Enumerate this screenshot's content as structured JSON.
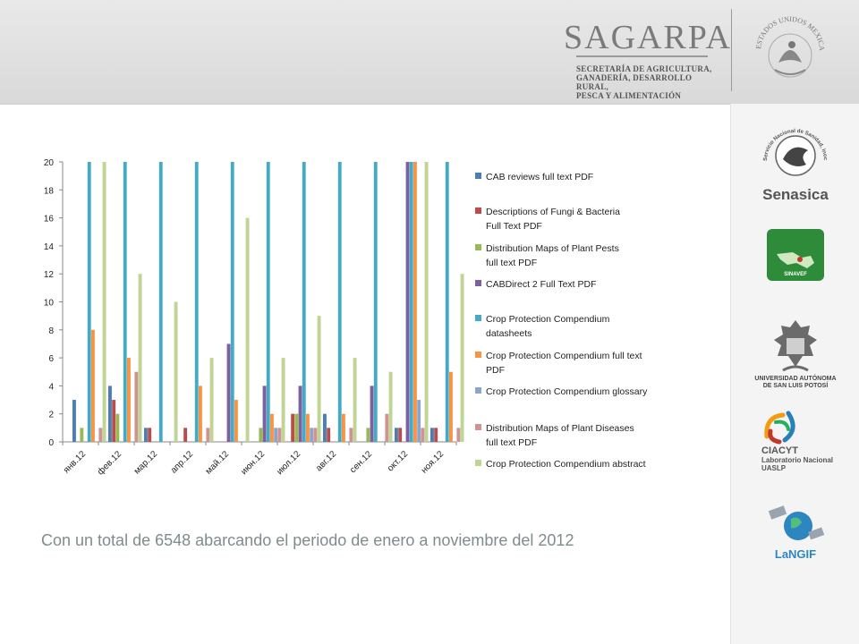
{
  "header": {
    "sagarpa_title": "SAGARPA",
    "sagarpa_sub1": "SECRETARÍA DE AGRICULTURA,",
    "sagarpa_sub2": "GANADERÍA, DESARROLLO RURAL,",
    "sagarpa_sub3": "PESCA Y ALIMENTACIÓN",
    "seal_text": "ESTADOS UNIDOS MEXICANOS"
  },
  "sidebar": {
    "senasica_ring": "Servicio Nacional de Sanidad, Inocuidad y Calidad Agroalimentaria",
    "senasica_label": "Senasica",
    "sinavef_label": "SINAVEF",
    "uaslp_label1": "UNIVERSIDAD AUTÓNOMA",
    "uaslp_label2": "DE SAN LUIS POTOSÍ",
    "ciacyt_label1": "CIACYT",
    "ciacyt_label2": "Laboratorio Nacional",
    "ciacyt_label3": "UASLP",
    "langif_label": "LaNGIF"
  },
  "caption": {
    "prefix": "Con un total de ",
    "total": "6548",
    "suffix": " abarcando el periodo de enero a noviembre del 2012"
  },
  "chart_data": {
    "type": "bar",
    "categories": [
      "янв.12",
      "фев.12",
      "мар.12",
      "апр.12",
      "май.12",
      "июн.12",
      "июл.12",
      "авг.12",
      "сен.12",
      "окт.12",
      "ноя.12"
    ],
    "ylim": [
      0,
      20
    ],
    "yticks": [
      0,
      2,
      4,
      6,
      8,
      10,
      12,
      14,
      16,
      18,
      20
    ],
    "grid": false,
    "legend_position": "right",
    "series": [
      {
        "name": "CAB reviews full text PDF",
        "color": "#4a7ebb",
        "values": [
          3,
          4,
          1,
          0,
          0,
          0,
          0,
          2,
          0,
          1,
          1
        ]
      },
      {
        "name": "Descriptions of Fungi & Bacteria Full Text PDF",
        "color": "#be4b48",
        "values": [
          0,
          3,
          1,
          1,
          0,
          0,
          2,
          1,
          0,
          1,
          1
        ]
      },
      {
        "name": "Distribution Maps of Plant Pests full text PDF",
        "color": "#98b954",
        "values": [
          1,
          2,
          0,
          0,
          0,
          1,
          2,
          0,
          1,
          0,
          0
        ]
      },
      {
        "name": "CABDirect 2 Full Text PDF",
        "color": "#7d60a0",
        "values": [
          0,
          0,
          0,
          0,
          7,
          4,
          4,
          0,
          4,
          20,
          0
        ]
      },
      {
        "name": "Crop Protection Compendium datasheets",
        "color": "#46aac5",
        "values": [
          20,
          20,
          20,
          20,
          20,
          20,
          20,
          20,
          20,
          20,
          20
        ]
      },
      {
        "name": "Crop Protection Compendium full text PDF",
        "color": "#f69546",
        "values": [
          8,
          6,
          0,
          4,
          3,
          2,
          2,
          2,
          0,
          20,
          5
        ]
      },
      {
        "name": "Crop Protection Compendium glossary",
        "color": "#8ea5cb",
        "values": [
          0,
          0,
          0,
          0,
          0,
          1,
          1,
          0,
          0,
          3,
          0
        ]
      },
      {
        "name": "Distribution Maps of Plant Diseases full text PDF",
        "color": "#cd9492",
        "values": [
          1,
          5,
          0,
          1,
          0,
          1,
          1,
          1,
          2,
          1,
          1
        ]
      },
      {
        "name": "Crop Protection Compendium abstract",
        "color": "#bed593",
        "values": [
          20,
          12,
          10,
          6,
          16,
          6,
          9,
          6,
          5,
          20,
          12
        ]
      }
    ]
  }
}
